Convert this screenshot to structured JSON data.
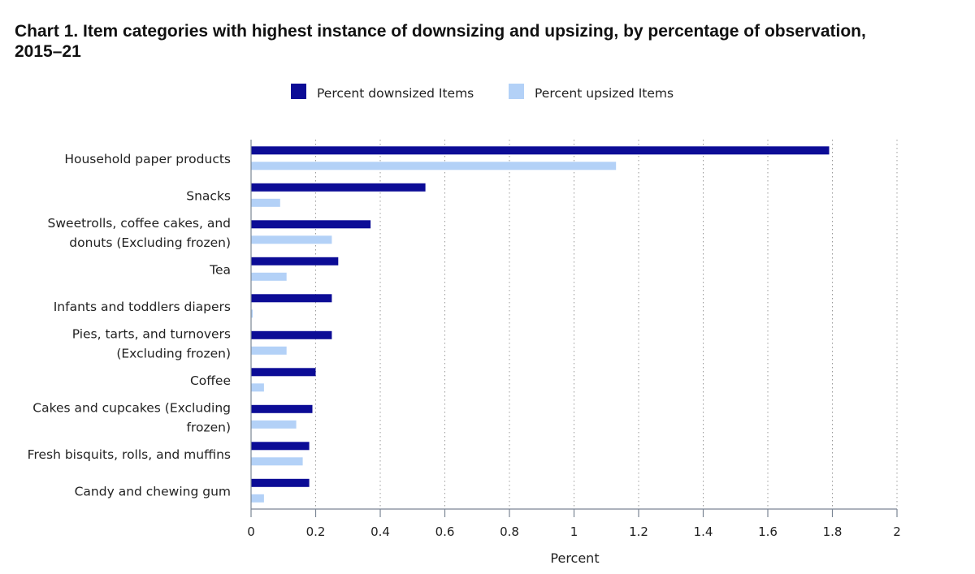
{
  "chart_data": {
    "type": "bar",
    "orientation": "horizontal",
    "title": "Chart 1. Item categories with highest instance of downsizing and upsizing, by percentage of observation, 2015–21",
    "xlabel": "Percent",
    "ylabel": "",
    "xlim": [
      0,
      2
    ],
    "xticks": [
      0,
      0.2,
      0.4,
      0.6,
      0.8,
      1,
      1.2,
      1.4,
      1.6,
      1.8,
      2
    ],
    "xtick_labels": [
      "0",
      "0.2",
      "0.4",
      "0.6",
      "0.8",
      "1",
      "1.2",
      "1.4",
      "1.6",
      "1.8",
      "2"
    ],
    "grid": "vertical dotted",
    "legend_placement": "top-center",
    "categories": [
      [
        "Household paper products"
      ],
      [
        "Snacks"
      ],
      [
        "Sweetrolls, coffee cakes, and",
        "donuts (Excluding frozen)"
      ],
      [
        "Tea"
      ],
      [
        "Infants and toddlers diapers"
      ],
      [
        "Pies, tarts, and turnovers",
        "(Excluding frozen)"
      ],
      [
        "Coffee"
      ],
      [
        "Cakes and cupcakes (Excluding",
        "frozen)"
      ],
      [
        "Fresh bisquits, rolls, and muffins"
      ],
      [
        "Candy and chewing gum"
      ]
    ],
    "series": [
      {
        "name": "Percent downsized Items",
        "color": "#0c0c96",
        "values": [
          1.79,
          0.54,
          0.37,
          0.27,
          0.25,
          0.25,
          0.2,
          0.19,
          0.18,
          0.18
        ]
      },
      {
        "name": "Percent upsized Items",
        "color": "#b3d1f7",
        "values": [
          1.13,
          0.09,
          0.25,
          0.11,
          0.005,
          0.11,
          0.04,
          0.14,
          0.16,
          0.04
        ]
      }
    ]
  }
}
